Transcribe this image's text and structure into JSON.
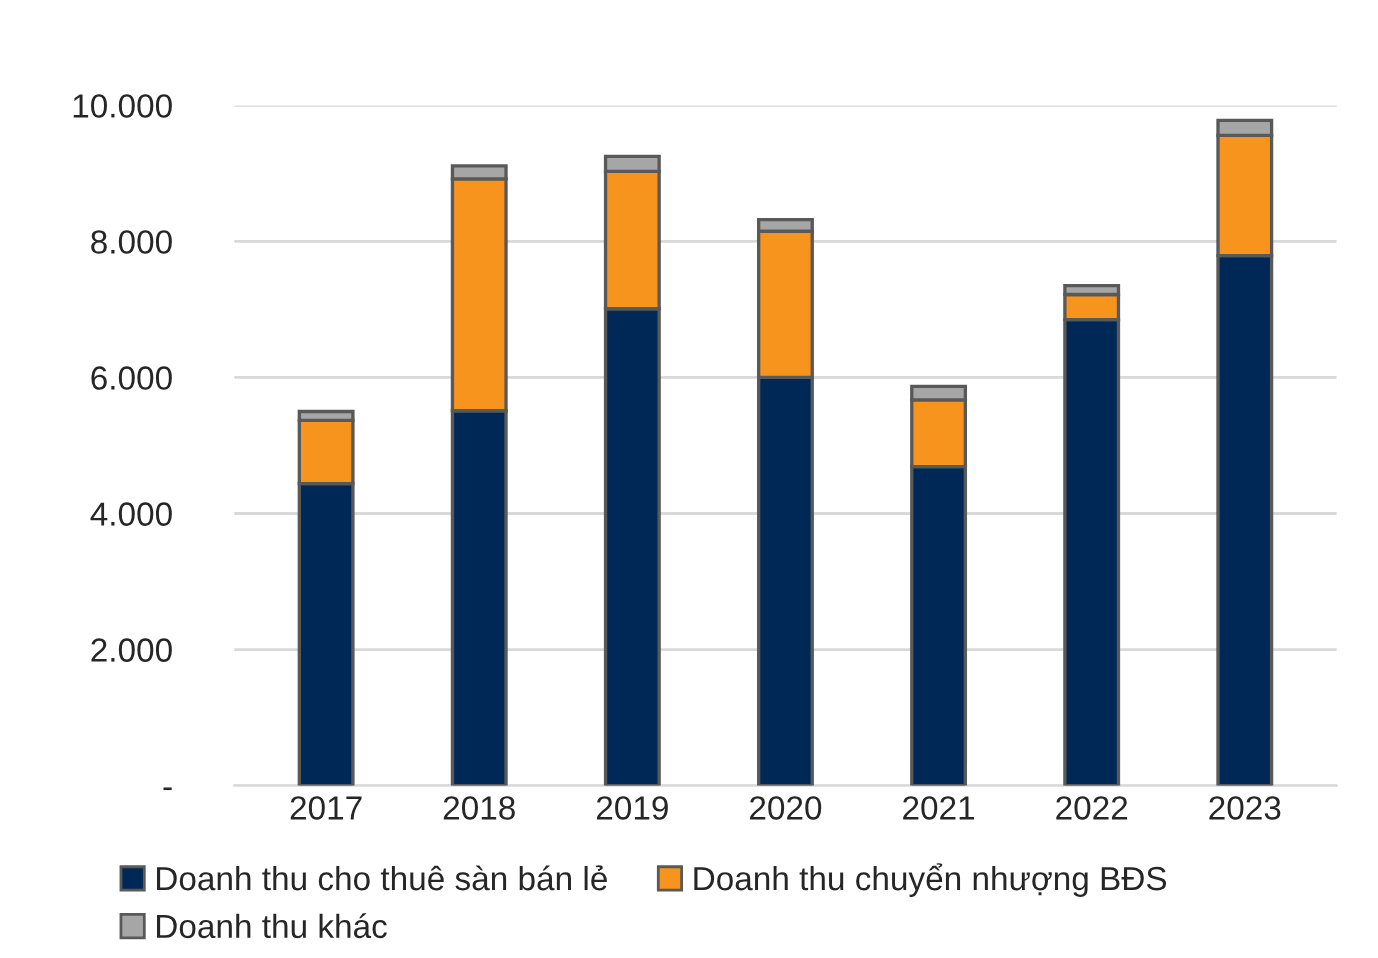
{
  "chart_data": {
    "type": "bar",
    "stacked": true,
    "categories": [
      "2017",
      "2018",
      "2019",
      "2020",
      "2021",
      "2022",
      "2023"
    ],
    "series": [
      {
        "name": "Doanh thu cho thuê sàn bán lẻ",
        "color": "#002856",
        "values": [
          4440,
          5510,
          7010,
          6000,
          4690,
          6850,
          7790
        ]
      },
      {
        "name": "Doanh thu chuyển nhượng BĐS",
        "color": "#f7941d",
        "values": [
          930,
          3410,
          2020,
          2150,
          980,
          370,
          1770
        ]
      },
      {
        "name": "Doanh thu khác",
        "color": "#a6a6a6",
        "values": [
          130,
          190,
          220,
          170,
          200,
          130,
          220
        ]
      }
    ],
    "ylim": [
      0,
      10000
    ],
    "yticks": [
      {
        "value": 0,
        "label": "-"
      },
      {
        "value": 2000,
        "label": "2.000"
      },
      {
        "value": 4000,
        "label": "4.000"
      },
      {
        "value": 6000,
        "label": "6.000"
      },
      {
        "value": 8000,
        "label": "8.000"
      },
      {
        "value": 10000,
        "label": "10.000"
      }
    ],
    "grid": "y",
    "legend": "bottom"
  }
}
